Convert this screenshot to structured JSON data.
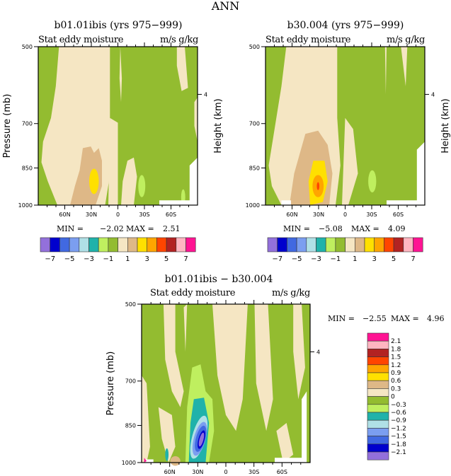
{
  "page": {
    "title": "ANN"
  },
  "chart_data": [
    {
      "type": "heatmap",
      "panel": "top-left",
      "title": "b01.01ibis (yrs 975−999)",
      "subtitle_left": "Stat eddy moisture",
      "subtitle_right": "m/s g/kg",
      "ylabel": "Pressure (mb)",
      "ylabel_right": "Height (km)",
      "y_ticks": [
        "500",
        "700",
        "850",
        "1000"
      ],
      "y_right_ticks": [
        "4"
      ],
      "x_ticks": [
        "60N",
        "30N",
        "0",
        "30S",
        "60S"
      ],
      "ylim": [
        1000,
        500
      ],
      "min_label": "MIN =",
      "min": "−2.02",
      "max_label": "MAX =",
      "max": "2.51",
      "colorbar": {
        "orientation": "horizontal",
        "labels": [
          "−7",
          "−5",
          "−3",
          "−1",
          "1",
          "3",
          "5",
          "7"
        ],
        "colors": [
          "#9370DB",
          "#0000CD",
          "#4169E1",
          "#7B9EF0",
          "#B0E0E6",
          "#20B2AA",
          "#BFEF5F",
          "#93BC30",
          "#F5E6C3",
          "#DEB887",
          "#FFE000",
          "#FFA500",
          "#FF4500",
          "#B22222",
          "#FFB6C1",
          "#FF1493"
        ]
      },
      "features": [
        {
          "value_band": "1 to 3",
          "location": "30N-20N near 850-1000 mb"
        },
        {
          "value_band": "0 to 1",
          "location": "broad band 75N-5N"
        }
      ]
    },
    {
      "type": "heatmap",
      "panel": "top-right",
      "title": "b30.004 (yrs 975−999)",
      "subtitle_left": "Stat eddy moisture",
      "subtitle_right": "m/s g/kg",
      "ylabel": "",
      "ylabel_right": "Height (km)",
      "y_ticks": [
        "500",
        "700",
        "850",
        "1000"
      ],
      "y_right_ticks": [
        "4"
      ],
      "x_ticks": [
        "60N",
        "30N",
        "0",
        "30S",
        "60S"
      ],
      "ylim": [
        1000,
        500
      ],
      "min_label": "MIN =",
      "min": "−5.08",
      "max_label": "MAX =",
      "max": "4.09",
      "colorbar": {
        "orientation": "horizontal",
        "labels": [
          "−7",
          "−5",
          "−3",
          "−1",
          "1",
          "3",
          "5",
          "7"
        ],
        "colors": [
          "#9370DB",
          "#0000CD",
          "#4169E1",
          "#7B9EF0",
          "#B0E0E6",
          "#20B2AA",
          "#BFEF5F",
          "#93BC30",
          "#F5E6C3",
          "#DEB887",
          "#FFE000",
          "#FFA500",
          "#FF4500",
          "#B22222",
          "#FFB6C1",
          "#FF1493"
        ]
      },
      "features": [
        {
          "value_band": "3 to 5",
          "location": "~25N near 900-950 mb"
        },
        {
          "value_band": "1 to 3",
          "location": "35N-15N below 750 mb"
        }
      ]
    },
    {
      "type": "heatmap",
      "panel": "bottom",
      "title": "b01.01ibis − b30.004",
      "subtitle_left": "Stat eddy moisture",
      "subtitle_right": "m/s g/kg",
      "ylabel": "Pressure (mb)",
      "ylabel_right": "Height (km)",
      "y_ticks": [
        "500",
        "700",
        "850",
        "1000"
      ],
      "y_right_ticks": [
        "4"
      ],
      "x_ticks": [
        "60N",
        "30N",
        "0",
        "30S",
        "60S"
      ],
      "ylim": [
        1000,
        500
      ],
      "min_label": "MIN =",
      "min": "−2.55",
      "max_label": "MAX =",
      "max": "4.96",
      "colorbar": {
        "orientation": "vertical",
        "labels": [
          "2.1",
          "1.8",
          "1.5",
          "1.2",
          "0.9",
          "0.6",
          "0.3",
          "0",
          "−0.3",
          "−0.6",
          "−0.9",
          "−1.2",
          "−1.5",
          "−1.8",
          "−2.1"
        ],
        "colors": [
          "#FF1493",
          "#FFB6C1",
          "#B22222",
          "#FF4500",
          "#FFA500",
          "#FFE000",
          "#DEB887",
          "#F5E6C3",
          "#93BC30",
          "#BFEF5F",
          "#20B2AA",
          "#B0E0E6",
          "#7B9EF0",
          "#4169E1",
          "#0000CD",
          "#9370DB"
        ]
      },
      "features": [
        {
          "value_band": "-2.1 to -1.8",
          "location": "~20N near 900-950 mb"
        },
        {
          "value_band": "-0.6 to -0.3",
          "location": "35N-10N 750-1000 mb"
        }
      ]
    }
  ]
}
